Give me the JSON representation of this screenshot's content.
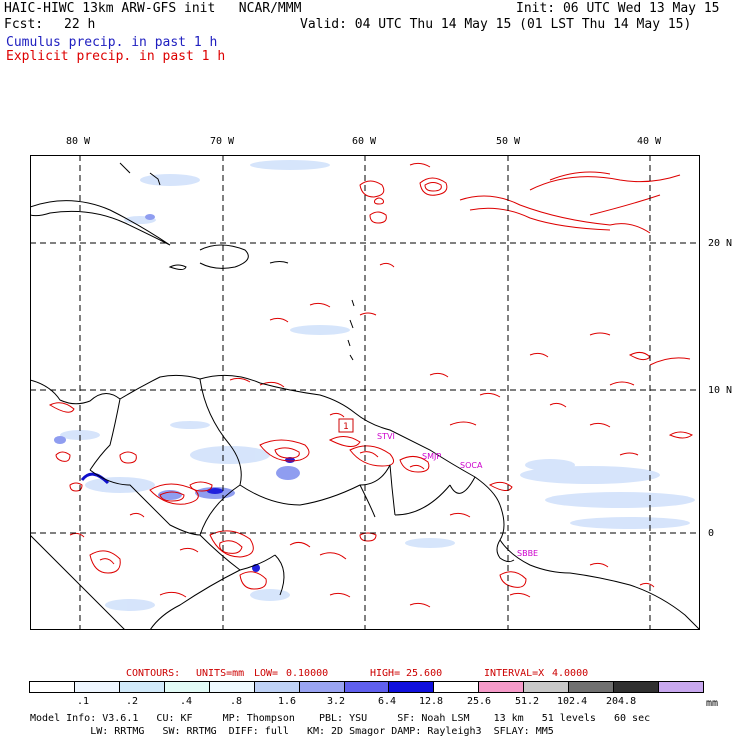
{
  "header": {
    "line1_left": "HAIC-HIWC 13km ARW-GFS init   NCAR/MMM",
    "line1_right": "Init: 06 UTC Wed 13 May 15",
    "line2_label": "Fcst:",
    "line2_hours": "22 h",
    "line2_right": "Valid: 04 UTC Thu 14 May 15 (01 LST Thu 14 May 15)",
    "cumulus_label": "Cumulus precip. in past 1 h",
    "explicit_label": "Explicit precip. in past 1 h"
  },
  "colors": {
    "cumulus": "#2020c0",
    "explicit": "#dd0000",
    "contour_text": "#cc0000",
    "station_label": "#cc00cc"
  },
  "map": {
    "lon_labels": [
      "80 W",
      "70 W",
      "60 W",
      "50 W",
      "40 W"
    ],
    "lat_labels": [
      "20 N",
      "10 N",
      "0"
    ],
    "stations": [
      "STVI",
      "SMJP",
      "SOCA",
      "SBBE"
    ],
    "max_marker": "1"
  },
  "contours": {
    "label_contours": "CONTOURS:",
    "label_units": "UNITS=mm",
    "label_low": "LOW=",
    "low": "0.10000",
    "label_high": "HIGH=",
    "high": "25.600",
    "label_interval": "INTERVAL=X",
    "interval": "4.0000"
  },
  "legend": {
    "levels": [
      ".1",
      ".2",
      ".4",
      ".8",
      "1.6",
      "3.2",
      "6.4",
      "12.8",
      "25.6",
      "51.2",
      "102.4",
      "204.8"
    ],
    "units": "mm",
    "colors": [
      "#ffffff",
      "#eef6ff",
      "#d2eafa",
      "#e2fbf6",
      "#eef9ff",
      "#bfd2f6",
      "#9aa4f2",
      "#6060ee",
      "#1010dd",
      "#ffffff",
      "#f59bc9",
      "#c8c8c8",
      "#707070",
      "#303030",
      "#c8a8ee"
    ]
  },
  "model_info": {
    "line1": "Model Info: V3.6.1   CU: KF     MP: Thompson    PBL: YSU     SF: Noah LSM    13 km   51 levels   60 sec",
    "line2": "          LW: RRTMG   SW: RRTMG  DIFF: full   KM: 2D Smagor DAMP: Rayleigh3  SFLAY: MM5"
  }
}
